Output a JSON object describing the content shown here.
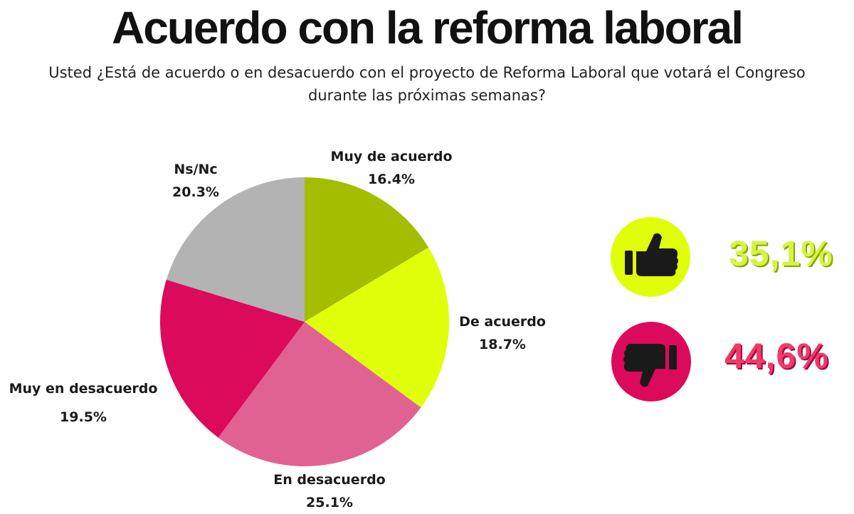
{
  "chart_data": {
    "type": "pie",
    "title": "Acuerdo con la reforma laboral",
    "subtitle": "Usted ¿Está de acuerdo o en desacuerdo con el proyecto de Reforma Laboral que votará el Congreso durante las próximas semanas?",
    "slices": [
      {
        "label": "Muy de acuerdo",
        "value": 16.4,
        "value_label": "16.4%",
        "color": "#a3bd00"
      },
      {
        "label": "De acuerdo",
        "value": 18.7,
        "value_label": "18.7%",
        "color": "#dfff0a"
      },
      {
        "label": "En desacuerdo",
        "value": 25.1,
        "value_label": "25.1%",
        "color": "#e06293"
      },
      {
        "label": "Muy en desacuerdo",
        "value": 19.5,
        "value_label": "19.5%",
        "color": "#db0a5a"
      },
      {
        "label": "Ns/Nc",
        "value": 20.3,
        "value_label": "20.3%",
        "color": "#b3b3b3"
      }
    ],
    "start": "12 o'clock",
    "direction": "clockwise"
  },
  "summary": {
    "agree": {
      "value_label": "35,1%",
      "icon": "thumbs-up-icon",
      "badge_color": "#dfff0a",
      "text_color": "#d4f542"
    },
    "disagree": {
      "value_label": "44,6%",
      "icon": "thumbs-down-icon",
      "badge_color": "#db0a5a",
      "text_color": "#f03a6a"
    }
  }
}
